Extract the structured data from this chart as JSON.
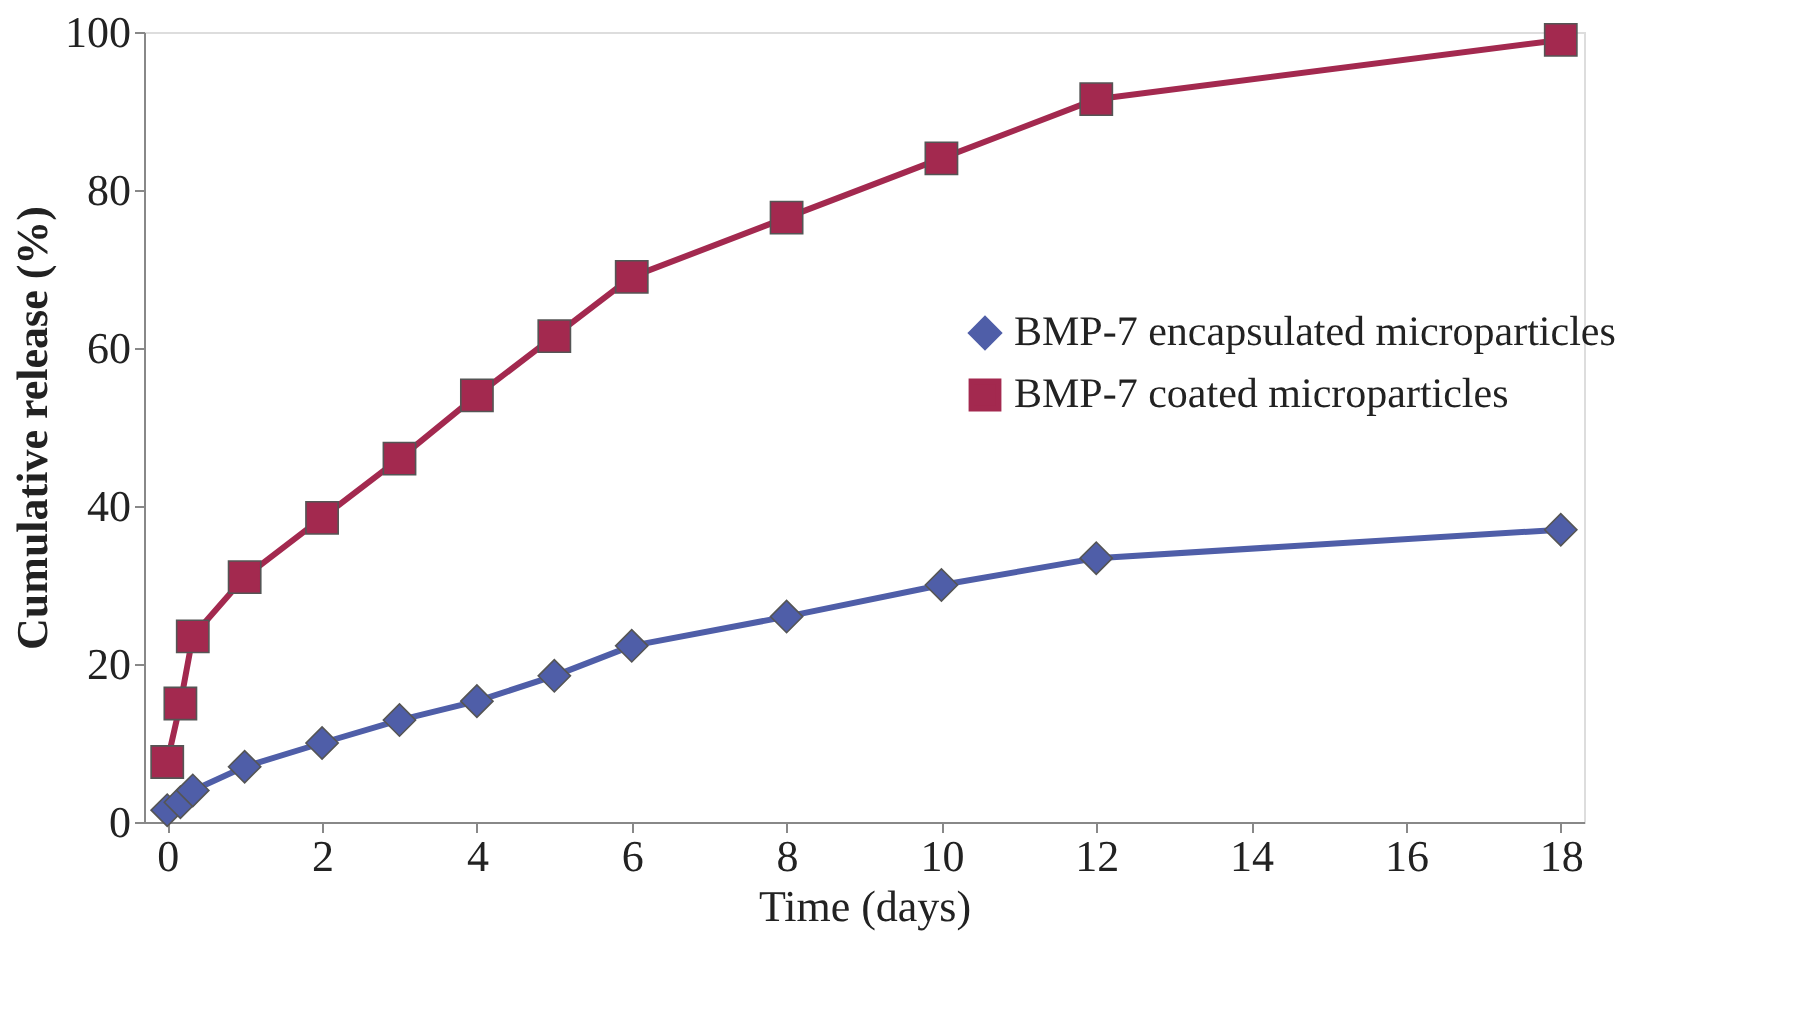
{
  "chart_data": {
    "type": "line",
    "xlabel": "Time (days)",
    "ylabel": "Cumulative release (%)",
    "xlim": [
      -0.3,
      18.3
    ],
    "xticks": [
      0,
      2,
      4,
      6,
      8,
      10,
      12,
      14,
      16,
      18
    ],
    "ylim": [
      0,
      100
    ],
    "yticks": [
      0,
      20,
      40,
      60,
      80,
      100
    ],
    "grid": false,
    "legend": "right",
    "line_style": "solid",
    "series": [
      {
        "name": "BMP-7 encapsulated microparticles",
        "color": "#4f5ea8",
        "marker": "diamond",
        "x": [
          0,
          0.17,
          0.33,
          1,
          2,
          3,
          4,
          5,
          6,
          8,
          10,
          12,
          18
        ],
        "values": [
          1.5,
          2.5,
          4,
          7,
          10,
          12.9,
          15.3,
          18.5,
          22.3,
          26,
          30,
          33.4,
          37
        ]
      },
      {
        "name": "BMP-7 coated microparticles",
        "color": "#a3294f",
        "marker": "square",
        "x": [
          0,
          0.17,
          0.33,
          1,
          2,
          3,
          4,
          5,
          6,
          8,
          10,
          12,
          18
        ],
        "values": [
          7.6,
          15,
          23.5,
          31,
          38.5,
          46,
          54,
          61.5,
          69,
          76.5,
          84,
          91.5,
          99
        ]
      }
    ]
  }
}
